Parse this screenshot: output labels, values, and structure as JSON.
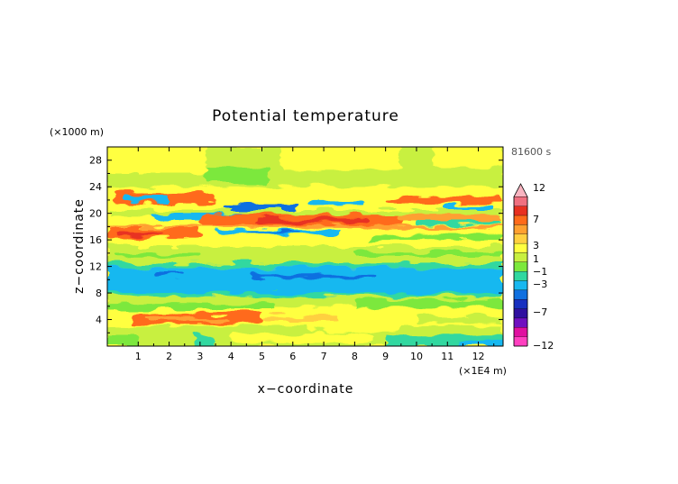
{
  "chart_data": {
    "type": "heatmap",
    "title": "Potential temperature",
    "xlabel": "x−coordinate",
    "ylabel": "z−coordinate",
    "x_unit": "(×1E4 m)",
    "y_unit": "(×1000 m)",
    "time_label": "81600 s",
    "xlim": [
      0,
      12.8
    ],
    "ylim": [
      0,
      30
    ],
    "x_ticks": [
      1,
      2,
      3,
      4,
      5,
      6,
      7,
      8,
      9,
      10,
      11,
      12
    ],
    "y_ticks": [
      4,
      8,
      12,
      16,
      20,
      24,
      28
    ],
    "colorbar": {
      "labels": [
        "12",
        "7",
        "3",
        "1",
        "−1",
        "−3",
        "−7",
        "−12"
      ],
      "levels": [
        12,
        7,
        3,
        1,
        -1,
        -3,
        -7,
        -12
      ],
      "colors": [
        "#f8b4c0",
        "#f07080",
        "#e83020",
        "#ff6a1a",
        "#ffa030",
        "#ffd040",
        "#ffff40",
        "#c8f040",
        "#7ce83c",
        "#30d8a0",
        "#18b8f0",
        "#1070e0",
        "#1830c0",
        "#3010a0",
        "#7010c0",
        "#e010a0",
        "#ff40c0"
      ]
    },
    "bands": [
      {
        "z": [
          0,
          3
        ],
        "value": "-1 to 1"
      },
      {
        "z": [
          3.5,
          5
        ],
        "value": "3"
      },
      {
        "z": [
          5,
          7.5
        ],
        "value": "1"
      },
      {
        "z": [
          7.5,
          12
        ],
        "value": "-3"
      },
      {
        "z": [
          12,
          15
        ],
        "value": "-1 to 1"
      },
      {
        "z": [
          16,
          20
        ],
        "value": "3"
      },
      {
        "z": [
          20,
          23
        ],
        "value": "-3 to 3"
      },
      {
        "z": [
          23,
          30
        ],
        "value": "-1 to 1"
      }
    ]
  }
}
